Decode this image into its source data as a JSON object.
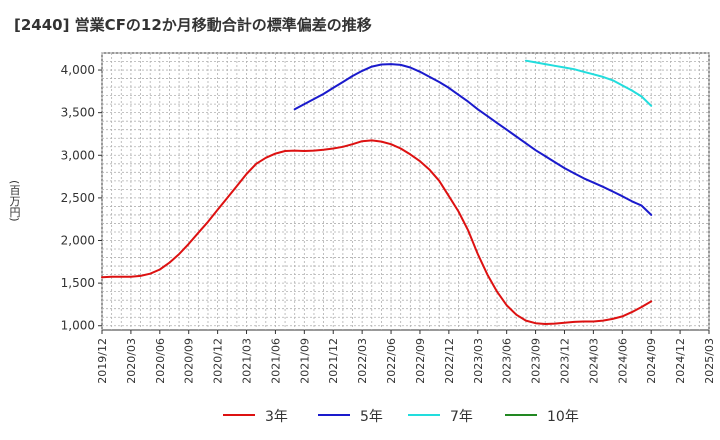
{
  "chart_data": {
    "type": "line",
    "title": "[2440]  営業CFの12か月移動合計の標準偏差の推移",
    "ylabel": "(百万円)",
    "xlabel": "",
    "ylim": [
      950,
      4200
    ],
    "yticks": [
      1000,
      1500,
      2000,
      2500,
      3000,
      3500,
      4000
    ],
    "ytick_labels": [
      "1,000",
      "1,500",
      "2,000",
      "2,500",
      "3,000",
      "3,500",
      "4,000"
    ],
    "x_tick_labels": [
      "2019/12",
      "2020/03",
      "2020/06",
      "2020/09",
      "2020/12",
      "2021/03",
      "2021/06",
      "2021/09",
      "2021/12",
      "2022/03",
      "2022/06",
      "2022/09",
      "2022/12",
      "2023/03",
      "2023/06",
      "2023/09",
      "2023/12",
      "2024/03",
      "2024/06",
      "2024/09",
      "2024/12",
      "2025/03"
    ],
    "x_start": "2019/12",
    "x_end": "2025/03",
    "grid": true,
    "legend_position": "bottom",
    "series": [
      {
        "name": "3年",
        "color": "#dd1111",
        "x": [
          "2019/12",
          "2020/01",
          "2020/02",
          "2020/03",
          "2020/04",
          "2020/05",
          "2020/06",
          "2020/07",
          "2020/08",
          "2020/09",
          "2020/10",
          "2020/11",
          "2020/12",
          "2021/01",
          "2021/02",
          "2021/03",
          "2021/04",
          "2021/05",
          "2021/06",
          "2021/07",
          "2021/08",
          "2021/09",
          "2021/10",
          "2021/11",
          "2021/12",
          "2022/01",
          "2022/02",
          "2022/03",
          "2022/04",
          "2022/05",
          "2022/06",
          "2022/07",
          "2022/08",
          "2022/09",
          "2022/10",
          "2022/11",
          "2022/12",
          "2023/01",
          "2023/02",
          "2023/03",
          "2023/04",
          "2023/05",
          "2023/06",
          "2023/07",
          "2023/08",
          "2023/09",
          "2023/10",
          "2023/11",
          "2023/12",
          "2024/01",
          "2024/02",
          "2024/03",
          "2024/04",
          "2024/05",
          "2024/06",
          "2024/07",
          "2024/08",
          "2024/09"
        ],
        "values": [
          1570,
          1575,
          1575,
          1575,
          1585,
          1610,
          1660,
          1740,
          1840,
          1960,
          2090,
          2220,
          2360,
          2500,
          2640,
          2780,
          2900,
          2970,
          3020,
          3050,
          3055,
          3050,
          3055,
          3065,
          3080,
          3100,
          3130,
          3165,
          3175,
          3160,
          3130,
          3080,
          3010,
          2930,
          2830,
          2700,
          2520,
          2340,
          2120,
          1840,
          1600,
          1400,
          1240,
          1130,
          1060,
          1030,
          1020,
          1025,
          1035,
          1045,
          1050,
          1050,
          1060,
          1080,
          1110,
          1160,
          1220,
          1285
        ]
      },
      {
        "name": "5年",
        "color": "#1a1acc",
        "x": [
          "2021/08",
          "2021/09",
          "2021/10",
          "2021/11",
          "2021/12",
          "2022/01",
          "2022/02",
          "2022/03",
          "2022/04",
          "2022/05",
          "2022/06",
          "2022/07",
          "2022/08",
          "2022/09",
          "2022/10",
          "2022/11",
          "2022/12",
          "2023/01",
          "2023/02",
          "2023/03",
          "2023/04",
          "2023/05",
          "2023/06",
          "2023/07",
          "2023/08",
          "2023/09",
          "2023/10",
          "2023/11",
          "2023/12",
          "2024/01",
          "2024/02",
          "2024/03",
          "2024/04",
          "2024/05",
          "2024/06",
          "2024/07",
          "2024/08",
          "2024/09"
        ],
        "values": [
          3540,
          3600,
          3660,
          3720,
          3790,
          3860,
          3930,
          3990,
          4040,
          4065,
          4070,
          4060,
          4030,
          3980,
          3920,
          3860,
          3790,
          3710,
          3630,
          3540,
          3460,
          3380,
          3300,
          3220,
          3140,
          3060,
          2990,
          2920,
          2850,
          2790,
          2730,
          2680,
          2630,
          2575,
          2520,
          2460,
          2410,
          2300
        ]
      },
      {
        "name": "7年",
        "color": "#22dddd",
        "x": [
          "2023/08",
          "2023/09",
          "2023/10",
          "2023/11",
          "2023/12",
          "2024/01",
          "2024/02",
          "2024/03",
          "2024/04",
          "2024/05",
          "2024/06",
          "2024/07",
          "2024/08",
          "2024/09"
        ],
        "values": [
          4110,
          4090,
          4070,
          4050,
          4030,
          4010,
          3980,
          3950,
          3920,
          3880,
          3820,
          3760,
          3690,
          3580
        ]
      },
      {
        "name": "10年",
        "color": "#228822",
        "x": [],
        "values": []
      }
    ]
  }
}
